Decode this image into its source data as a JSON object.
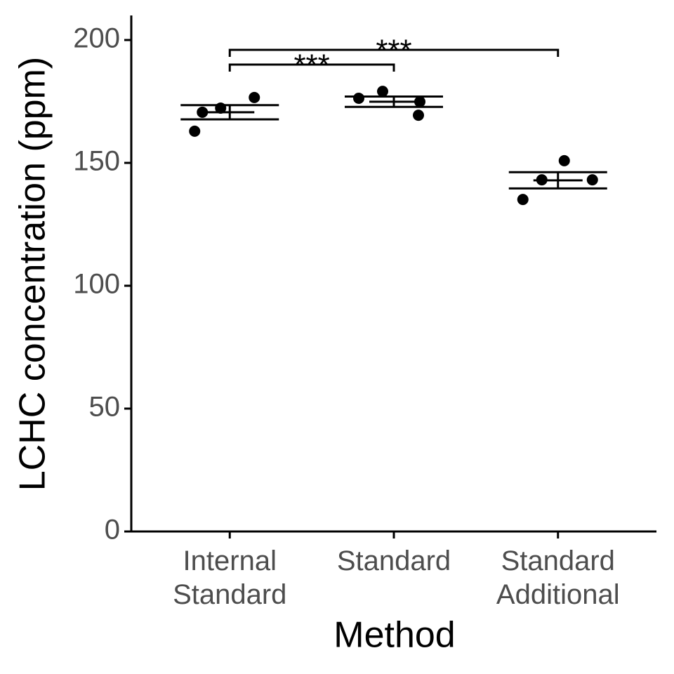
{
  "chart_data": {
    "type": "dot",
    "x_label": "Method",
    "y_label": "LCHC concentration (ppm)",
    "categories": [
      "Internal\nStandard",
      "Standard",
      "Standard\nAdditional"
    ],
    "points": [
      [
        162.9,
        170.6,
        172.3,
        176.6
      ],
      [
        176.3,
        179.1,
        174.9,
        169.4
      ],
      [
        135.1,
        143.1,
        150.9,
        143.1
      ]
    ],
    "means": [
      170.6,
      174.9,
      142.9
    ],
    "errors": [
      2.9,
      2.1,
      3.3
    ],
    "color": "#000000",
    "ylim": [
      0,
      210
    ],
    "yticks": [
      0,
      50,
      100,
      150,
      200
    ],
    "brackets": [
      {
        "from": 0,
        "to": 1,
        "y": 190,
        "label": "***"
      },
      {
        "from": 0,
        "to": 2,
        "y": 196,
        "label": "***"
      }
    ]
  }
}
